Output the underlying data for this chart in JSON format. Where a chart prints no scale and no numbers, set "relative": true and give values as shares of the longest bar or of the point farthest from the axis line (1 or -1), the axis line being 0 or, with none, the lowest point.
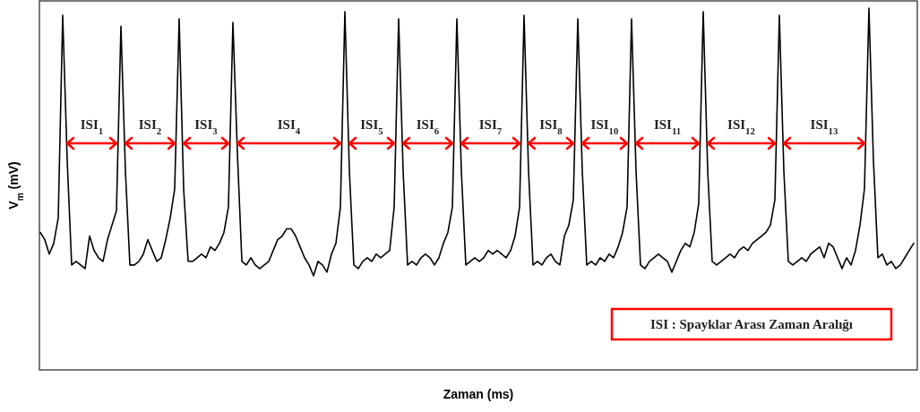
{
  "chart_data": {
    "type": "line",
    "relative": true,
    "xlabel": "Zaman (ms)",
    "ylabel": "V$_{m}$ (mV)",
    "annotations": [
      "ISI$_{1}$",
      "ISI$_{2}$",
      "ISI$_{3}$",
      "ISI$_{4}$",
      "ISI$_{5}$",
      "ISI$_{6}$",
      "ISI$_{7}$",
      "ISI$_{8}$",
      "ISI$_{10}$",
      "ISI$_{11}$",
      "ISI$_{12}$",
      "ISI$_{13}$",
      "ISI : Spayklar Arası Zaman Aralığı"
    ],
    "categories": [
      null,
      null,
      null,
      null,
      null,
      null,
      null,
      null,
      null,
      null,
      null,
      null,
      null,
      null,
      null,
      null,
      null,
      null,
      null,
      null,
      null,
      null,
      null,
      null,
      null,
      null,
      null,
      null,
      null,
      null,
      null,
      null,
      null,
      null,
      null,
      null,
      null,
      null,
      null,
      null,
      null,
      null,
      null,
      null,
      null,
      null,
      null,
      null,
      null,
      null,
      null,
      null,
      null,
      null,
      null,
      null,
      null,
      null,
      null,
      null,
      null,
      null,
      null,
      null,
      null,
      null,
      null,
      null,
      null,
      null,
      null,
      null,
      null,
      null,
      null,
      null,
      null,
      null,
      null,
      null,
      null,
      null,
      null,
      null,
      null,
      null,
      null,
      null,
      null,
      null,
      null,
      null,
      null,
      null,
      null,
      null,
      null,
      null,
      null,
      null,
      null,
      null,
      null,
      null,
      null,
      null,
      null,
      null,
      null,
      null,
      null,
      null,
      null,
      null,
      null,
      null,
      null,
      null,
      null,
      null,
      null,
      null,
      null,
      null,
      null,
      null,
      null,
      null,
      null,
      null,
      null,
      null,
      null,
      null,
      null,
      null,
      null,
      null,
      null,
      null,
      null,
      null,
      null,
      null,
      null,
      null,
      null,
      null,
      null,
      null,
      null,
      null,
      null,
      null,
      null,
      null,
      null,
      null,
      null,
      null,
      null,
      null,
      null,
      null,
      null,
      null,
      null,
      null,
      null,
      null,
      null,
      null,
      null,
      null,
      null,
      null,
      null,
      null,
      null,
      null,
      null,
      null,
      null,
      null,
      null,
      null,
      null,
      null,
      null,
      null,
      null,
      null,
      null,
      null,
      null,
      null
    ],
    "series": [
      {
        "color": "#000000",
        "values": [
          0.38,
          0.36,
          0.32,
          0.35,
          0.42,
          0.98,
          0.58,
          0.29,
          0.3,
          0.29,
          0.28,
          0.37,
          0.33,
          0.31,
          0.3,
          0.36,
          0.4,
          0.44,
          0.95,
          0.55,
          0.29,
          0.29,
          0.3,
          0.32,
          0.36,
          0.33,
          0.3,
          0.31,
          0.36,
          0.42,
          0.5,
          0.97,
          0.5,
          0.3,
          0.3,
          0.31,
          0.32,
          0.31,
          0.34,
          0.33,
          0.35,
          0.38,
          0.45,
          0.96,
          0.6,
          0.3,
          0.29,
          0.31,
          0.29,
          0.28,
          0.29,
          0.3,
          0.33,
          0.36,
          0.37,
          0.39,
          0.39,
          0.37,
          0.34,
          0.31,
          0.29,
          0.26,
          0.3,
          0.29,
          0.27,
          0.32,
          0.35,
          0.45,
          0.99,
          0.55,
          0.29,
          0.28,
          0.3,
          0.31,
          0.3,
          0.32,
          0.31,
          0.32,
          0.33,
          0.45,
          0.97,
          0.55,
          0.29,
          0.3,
          0.29,
          0.31,
          0.32,
          0.31,
          0.29,
          0.31,
          0.35,
          0.38,
          0.45,
          0.97,
          0.55,
          0.29,
          0.3,
          0.31,
          0.3,
          0.31,
          0.33,
          0.32,
          0.33,
          0.32,
          0.31,
          0.33,
          0.37,
          0.45,
          0.98,
          0.55,
          0.29,
          0.3,
          0.29,
          0.31,
          0.32,
          0.3,
          0.29,
          0.37,
          0.4,
          0.47,
          0.97,
          0.55,
          0.29,
          0.3,
          0.29,
          0.31,
          0.3,
          0.32,
          0.31,
          0.34,
          0.38,
          0.45,
          0.97,
          0.55,
          0.29,
          0.28,
          0.3,
          0.31,
          0.32,
          0.31,
          0.3,
          0.27,
          0.3,
          0.33,
          0.35,
          0.34,
          0.38,
          0.46,
          0.99,
          0.55,
          0.3,
          0.29,
          0.3,
          0.31,
          0.32,
          0.31,
          0.33,
          0.34,
          0.33,
          0.35,
          0.36,
          0.37,
          0.38,
          0.4,
          0.47,
          0.98,
          0.55,
          0.3,
          0.29,
          0.3,
          0.31,
          0.3,
          0.32,
          0.33,
          0.34,
          0.31,
          0.35,
          0.34,
          0.31,
          0.28,
          0.31,
          0.29,
          0.33,
          0.4,
          0.5,
          1,
          0.58,
          0.31,
          0.32,
          0.29,
          0.3,
          0.28,
          0.29,
          0.31,
          0.33,
          0.35
        ]
      }
    ]
  }
}
